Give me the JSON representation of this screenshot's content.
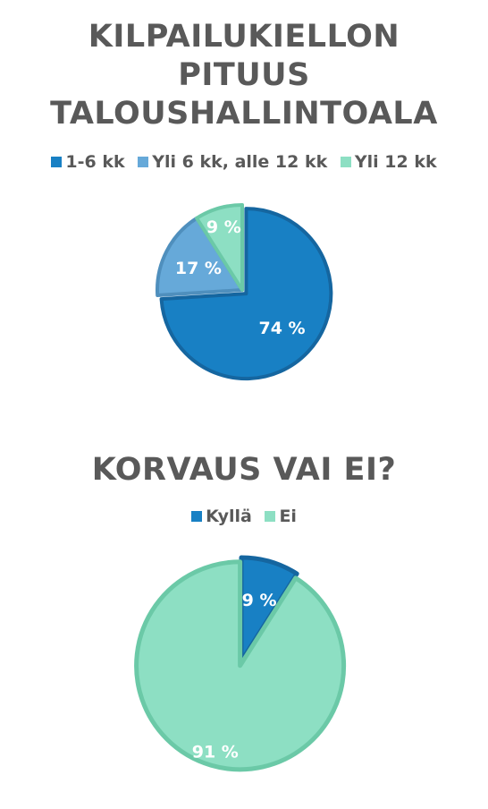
{
  "chart_data": [
    {
      "type": "pie",
      "title_lines": [
        "KILPAILUKIELLON",
        "PITUUS",
        "TALOUSHALLINTOALA"
      ],
      "categories": [
        "1-6 kk",
        "Yli 6 kk, alle 12 kk",
        "Yli 12 kk"
      ],
      "values": [
        74,
        17,
        9
      ],
      "labels": [
        "74 %",
        "17 %",
        "9 %"
      ],
      "colors": [
        "#1880c4",
        "#66a9d9",
        "#8ddfc3"
      ],
      "edge_colors": [
        "#1566a0",
        "#4f8fbd",
        "#6bc9a7"
      ],
      "exploded_index": 0,
      "legend_position": "top"
    },
    {
      "type": "pie",
      "title_lines": [
        "KORVAUS VAI EI?"
      ],
      "categories": [
        "Kyllä",
        "Ei"
      ],
      "values": [
        9,
        91
      ],
      "labels": [
        "9 %",
        "91 %"
      ],
      "colors": [
        "#1880c4",
        "#8ddfc3"
      ],
      "edge_colors": [
        "#1566a0",
        "#6bc9a7"
      ],
      "exploded_index": 1,
      "legend_position": "top"
    }
  ]
}
